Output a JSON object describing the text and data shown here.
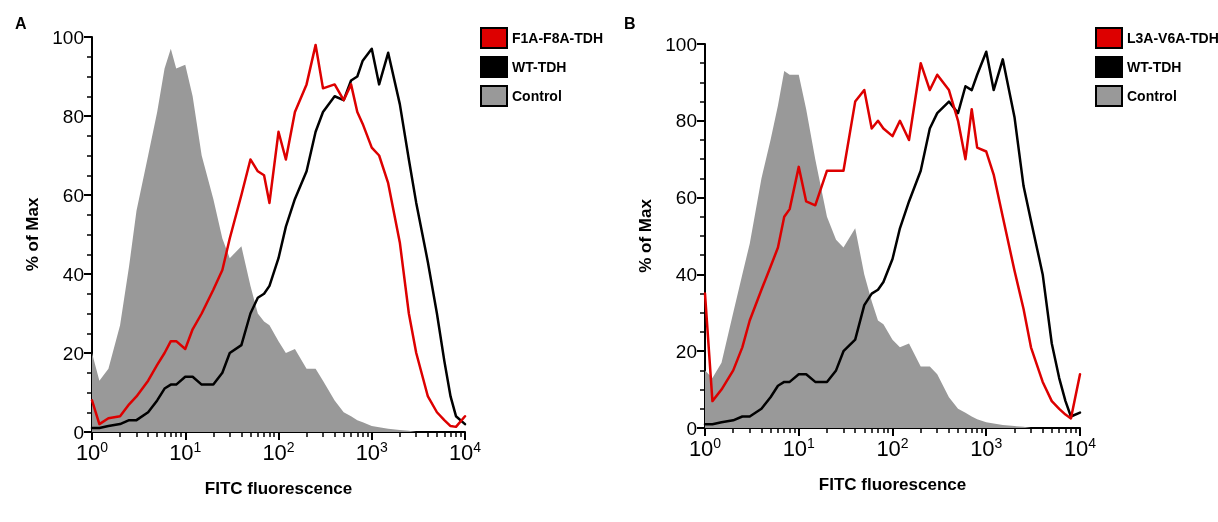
{
  "chart_data": [
    {
      "type": "line",
      "title": "A",
      "xlabel": "FITC fluorescence",
      "ylabel": "% of Max",
      "log": "x",
      "legend": "top right",
      "marker": "none",
      "grid": false,
      "xlim": [
        1,
        10000
      ],
      "xticks": [
        {
          "value": 1,
          "label": "10$^{0}$"
        },
        {
          "value": 10,
          "label": "10$^{1}$"
        },
        {
          "value": 100,
          "label": "10$^{2}$"
        },
        {
          "value": 1000,
          "label": "10$^{3}$"
        },
        {
          "value": 10000,
          "label": "10$^{4}$"
        }
      ],
      "ylim": [
        0,
        100
      ],
      "yticks": [
        0,
        20,
        40,
        60,
        80,
        100
      ],
      "x": [
        1,
        1.2,
        1.5,
        2,
        2.5,
        3,
        4,
        5,
        6,
        7,
        8,
        10,
        12,
        15,
        20,
        25,
        30,
        40,
        50,
        60,
        70,
        80,
        100,
        120,
        150,
        200,
        250,
        300,
        400,
        500,
        600,
        700,
        800,
        1000,
        1200,
        1500,
        2000,
        2500,
        3000,
        4000,
        5000,
        6000,
        7000,
        8000,
        10000
      ],
      "series": [
        {
          "name": "Control",
          "type": "area",
          "color": "#999999",
          "values": [
            20,
            13,
            16,
            27,
            42,
            56,
            70,
            81,
            92,
            97,
            92,
            93,
            85,
            70,
            59,
            49,
            44,
            47,
            37,
            30,
            28,
            27,
            23,
            20,
            21,
            16,
            16,
            13,
            8,
            5,
            4,
            3,
            2.5,
            1.5,
            1.2,
            0.8,
            0.5,
            0.3,
            0,
            0,
            0,
            0,
            0,
            0,
            0
          ]
        },
        {
          "name": "WT-TDH",
          "color": "#000000",
          "values": [
            1,
            1,
            1.5,
            2,
            3,
            3,
            5,
            8,
            11,
            12,
            12,
            14,
            14,
            12,
            12,
            15,
            20,
            22,
            30,
            34,
            35,
            37,
            44,
            52,
            59,
            66,
            76,
            81,
            85,
            84,
            89,
            90,
            94,
            97,
            88,
            96,
            83,
            69,
            58,
            43,
            30,
            18,
            9,
            4,
            2
          ]
        },
        {
          "name": "F1A-F8A-TDH",
          "color": "#dd0000",
          "values": [
            8,
            2,
            3.5,
            4,
            7,
            9,
            13,
            17,
            20,
            23,
            23,
            21,
            26,
            30,
            36,
            41,
            49,
            60,
            69,
            66,
            65,
            58,
            76,
            69,
            81,
            88,
            98,
            87,
            88,
            84,
            88,
            81,
            78,
            72,
            70,
            63,
            48,
            30,
            20,
            9,
            5,
            3,
            1.5,
            1.3,
            4
          ]
        }
      ]
    },
    {
      "type": "line",
      "title": "B",
      "xlabel": "FITC fluorescence",
      "ylabel": "% of Max",
      "log": "x",
      "legend": "top right",
      "marker": "none",
      "grid": false,
      "xlim": [
        1,
        10000
      ],
      "xticks": [
        {
          "value": 1,
          "label": "10$^{0}$"
        },
        {
          "value": 10,
          "label": "10$^{1}$"
        },
        {
          "value": 100,
          "label": "10$^{2}$"
        },
        {
          "value": 1000,
          "label": "10$^{3}$"
        },
        {
          "value": 10000,
          "label": "10$^{4}$"
        }
      ],
      "ylim": [
        0,
        100
      ],
      "yticks": [
        0,
        20,
        40,
        60,
        80,
        100
      ],
      "x": [
        1,
        1.2,
        1.5,
        2,
        2.5,
        3,
        4,
        5,
        6,
        7,
        8,
        10,
        12,
        15,
        20,
        25,
        30,
        40,
        50,
        60,
        70,
        80,
        100,
        120,
        150,
        200,
        250,
        300,
        400,
        500,
        600,
        700,
        800,
        1000,
        1200,
        1500,
        2000,
        2500,
        3000,
        4000,
        5000,
        6000,
        7000,
        8000,
        10000
      ],
      "series": [
        {
          "name": "Control",
          "type": "area",
          "color": "#999999",
          "values": [
            15,
            13,
            17,
            30,
            40,
            48,
            65,
            75,
            84,
            93,
            92,
            92,
            83,
            70,
            55,
            49,
            47,
            52,
            40,
            33,
            28,
            27,
            23,
            21,
            22,
            16,
            16,
            14,
            8,
            5,
            4,
            3,
            2.3,
            1.5,
            1.2,
            0.8,
            0.5,
            0.3,
            0,
            0,
            0,
            0,
            0,
            0,
            0
          ]
        },
        {
          "name": "WT-TDH",
          "color": "#000000",
          "values": [
            1,
            1,
            1.5,
            2,
            3,
            3,
            5,
            8,
            11,
            12,
            12,
            14,
            14,
            12,
            12,
            15,
            20,
            23,
            32,
            35,
            36,
            38,
            44,
            52,
            59,
            67,
            78,
            82,
            85,
            82,
            89,
            88,
            92,
            98,
            88,
            96,
            81,
            63,
            54,
            40,
            22,
            13,
            7,
            3,
            4
          ]
        },
        {
          "name": "L3A-V6A-TDH",
          "color": "#dd0000",
          "values": [
            35,
            7,
            10,
            15,
            21,
            28,
            36,
            42,
            47,
            55,
            57,
            68,
            59,
            58,
            67,
            67,
            67,
            85,
            88,
            78,
            80,
            78,
            76,
            80,
            75,
            95,
            88,
            92,
            88,
            80,
            70,
            83,
            73,
            72,
            66,
            55,
            41,
            31,
            21,
            12,
            7,
            5,
            3.5,
            2.5,
            14
          ]
        }
      ]
    }
  ]
}
